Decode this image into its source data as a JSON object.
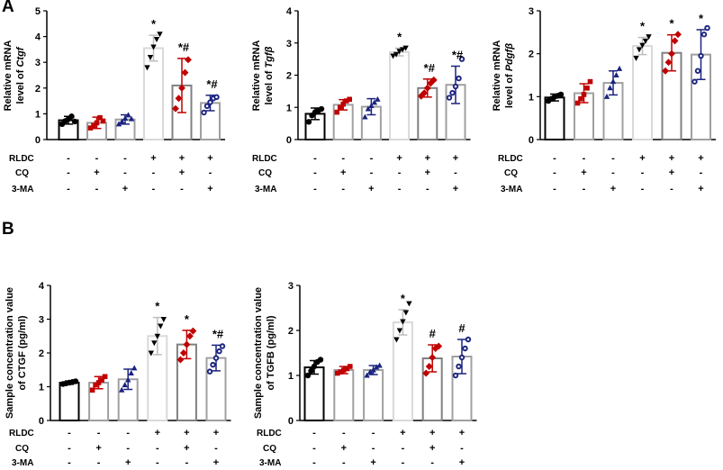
{
  "panel_letters": [
    "A",
    "B"
  ],
  "condition_labels": [
    "RLDC",
    "CQ",
    "3-MA"
  ],
  "condition_table": [
    [
      "-",
      "-",
      "-",
      "+",
      "+",
      "+"
    ],
    [
      "-",
      "+",
      "-",
      "-",
      "+",
      "-"
    ],
    [
      "-",
      "-",
      "+",
      "-",
      "-",
      "+"
    ]
  ],
  "group_colors": [
    "#000000",
    "#c00000",
    "#1a237e",
    "#bdbdbd",
    "#c00000",
    "#1a237e"
  ],
  "fill_colors": [
    "#ffffff",
    "#ffffff",
    "#ffffff",
    "#ffffff",
    "#ffffff",
    "#ffffff"
  ],
  "edge_colors": [
    "#000000",
    "#a0a0a0",
    "#a0a0a0",
    "#d9d9d9",
    "#808080",
    "#a0a0a0"
  ],
  "chart_data": [
    {
      "type": "bar",
      "panel": "A",
      "title": "",
      "ylabel_lines": [
        "Relative mRNA",
        "level of Ctgf"
      ],
      "ylabel_italic": "Ctgf",
      "ylim": [
        0,
        5
      ],
      "yticks": [
        0,
        1,
        2,
        3,
        4,
        5
      ],
      "categories": [
        "1",
        "2",
        "3",
        "4",
        "5",
        "6"
      ],
      "values": [
        0.75,
        0.65,
        0.78,
        3.55,
        2.1,
        1.42
      ],
      "errors": [
        0.15,
        0.22,
        0.18,
        0.5,
        1.05,
        0.3
      ],
      "points": [
        [
          0.6,
          0.72,
          0.8,
          0.9,
          0.7
        ],
        [
          0.45,
          0.55,
          0.65,
          0.85,
          0.72
        ],
        [
          0.6,
          0.7,
          0.82,
          0.95,
          0.8
        ],
        [
          2.8,
          3.2,
          3.6,
          3.9,
          4.1
        ],
        [
          1.2,
          1.6,
          2.0,
          2.6,
          3.1
        ],
        [
          1.05,
          1.3,
          1.45,
          1.6,
          1.65
        ]
      ],
      "significance": [
        "",
        "",
        "",
        "*",
        "*#",
        "*#"
      ]
    },
    {
      "type": "bar",
      "panel": "A",
      "title": "",
      "ylabel_lines": [
        "Relative mRNA",
        "level of Tgfβ"
      ],
      "ylabel_italic": "Tgfβ",
      "ylim": [
        0,
        4
      ],
      "yticks": [
        0,
        1,
        2,
        3,
        4
      ],
      "categories": [
        "1",
        "2",
        "3",
        "4",
        "5",
        "6"
      ],
      "values": [
        0.8,
        1.08,
        1.02,
        2.72,
        1.6,
        1.7
      ],
      "errors": [
        0.18,
        0.16,
        0.25,
        0.12,
        0.28,
        0.58
      ],
      "points": [
        [
          0.55,
          0.75,
          0.85,
          0.9,
          0.95
        ],
        [
          0.85,
          1.0,
          1.1,
          1.2,
          1.25
        ],
        [
          0.7,
          0.95,
          1.05,
          1.15,
          1.25
        ],
        [
          2.6,
          2.65,
          2.75,
          2.8,
          2.85
        ],
        [
          1.35,
          1.45,
          1.6,
          1.75,
          1.85
        ],
        [
          1.3,
          1.45,
          1.65,
          1.9,
          2.5
        ]
      ],
      "significance": [
        "",
        "",
        "",
        "*",
        "*#",
        "*#"
      ]
    },
    {
      "type": "bar",
      "panel": "A",
      "title": "",
      "ylabel_lines": [
        "Relative mRNA",
        "level of Pdgfβ"
      ],
      "ylabel_italic": "Pdgfβ",
      "ylim": [
        0,
        3
      ],
      "yticks": [
        0,
        1,
        2,
        3
      ],
      "categories": [
        "1",
        "2",
        "3",
        "4",
        "5",
        "6"
      ],
      "values": [
        0.98,
        1.08,
        1.32,
        2.18,
        2.02,
        1.98
      ],
      "errors": [
        0.08,
        0.22,
        0.28,
        0.2,
        0.42,
        0.58
      ],
      "points": [
        [
          0.9,
          0.95,
          1.0,
          1.02,
          1.05
        ],
        [
          0.85,
          0.95,
          1.05,
          1.2,
          1.35
        ],
        [
          1.0,
          1.2,
          1.35,
          1.5,
          1.65
        ],
        [
          1.9,
          2.1,
          2.2,
          2.3,
          2.4
        ],
        [
          1.6,
          1.8,
          2.0,
          2.3,
          2.45
        ],
        [
          1.35,
          1.6,
          1.95,
          2.45,
          2.6
        ]
      ],
      "significance": [
        "",
        "",
        "",
        "*",
        "*",
        "*"
      ]
    },
    {
      "type": "bar",
      "panel": "B",
      "title": "",
      "ylabel_lines": [
        "Sample concentration value",
        "of CTGF (pg/ml)"
      ],
      "ylabel_italic": "",
      "ylim": [
        0,
        4
      ],
      "yticks": [
        0,
        1,
        2,
        3,
        4
      ],
      "categories": [
        "1",
        "2",
        "3",
        "4",
        "5",
        "6"
      ],
      "values": [
        1.12,
        1.12,
        1.22,
        2.5,
        2.25,
        1.85
      ],
      "errors": [
        0.05,
        0.18,
        0.3,
        0.55,
        0.42,
        0.38
      ],
      "points": [
        [
          1.08,
          1.1,
          1.12,
          1.14,
          1.16
        ],
        [
          0.9,
          1.05,
          1.12,
          1.2,
          1.3
        ],
        [
          0.9,
          1.05,
          1.2,
          1.4,
          1.55
        ],
        [
          2.0,
          2.3,
          2.5,
          2.8,
          3.0
        ],
        [
          1.8,
          2.0,
          2.25,
          2.5,
          2.65
        ],
        [
          1.45,
          1.65,
          1.85,
          2.05,
          2.2
        ]
      ],
      "significance": [
        "",
        "",
        "",
        "*",
        "*",
        "*#"
      ]
    },
    {
      "type": "bar",
      "panel": "B",
      "title": "",
      "ylabel_lines": [
        "Sample concentration value",
        "of TGFB (pg/ml)"
      ],
      "ylabel_italic": "",
      "ylim": [
        0,
        3
      ],
      "yticks": [
        0,
        1,
        2,
        3
      ],
      "categories": [
        "1",
        "2",
        "3",
        "4",
        "5",
        "6"
      ],
      "values": [
        1.18,
        1.12,
        1.12,
        2.18,
        1.38,
        1.42
      ],
      "errors": [
        0.15,
        0.08,
        0.1,
        0.28,
        0.3,
        0.38
      ],
      "points": [
        [
          1.0,
          1.1,
          1.2,
          1.3,
          1.35
        ],
        [
          1.05,
          1.08,
          1.12,
          1.15,
          1.2
        ],
        [
          1.0,
          1.08,
          1.12,
          1.18,
          1.22
        ],
        [
          1.8,
          2.0,
          2.2,
          2.4,
          2.6
        ],
        [
          1.05,
          1.2,
          1.4,
          1.6,
          1.65
        ],
        [
          1.0,
          1.2,
          1.4,
          1.6,
          1.8
        ]
      ],
      "significance": [
        "",
        "",
        "",
        "*",
        "#",
        "#"
      ]
    }
  ]
}
